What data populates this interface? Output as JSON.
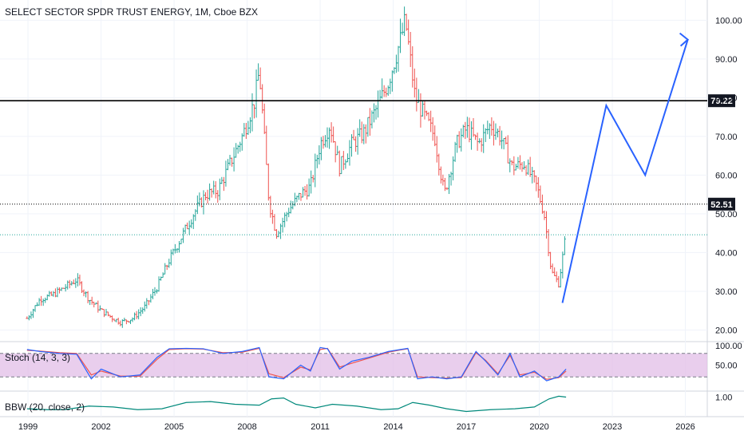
{
  "chart_data": {
    "type": "line",
    "title": "SELECT SECTOR SPDR TRUST ENERGY, 1M, Cboe BZX",
    "main_panel": {
      "y_ticks": [
        "20.00",
        "30.00",
        "40.00",
        "50.00",
        "60.00",
        "70.00",
        "80.00",
        "90.00",
        "100.00"
      ],
      "ylim": [
        17,
        104
      ],
      "y_scale": "linear",
      "price_series": {
        "style": "monthly bars",
        "up_color": "#26a69a",
        "down_color": "#ef5350",
        "x": [
          1998.96,
          1999.5,
          2000.0,
          2000.5,
          2001.0,
          2001.5,
          2002.0,
          2002.5,
          2002.8,
          2003.3,
          2003.8,
          2004.3,
          2004.8,
          2005.3,
          2005.8,
          2006.3,
          2006.8,
          2007.3,
          2007.8,
          2008.3,
          2008.5,
          2008.9,
          2009.2,
          2009.7,
          2010.2,
          2010.6,
          2011.0,
          2011.4,
          2011.8,
          2012.3,
          2012.8,
          2013.3,
          2013.8,
          2014.3,
          2014.5,
          2014.9,
          2015.3,
          2015.7,
          2016.1,
          2016.6,
          2017.0,
          2017.5,
          2018.0,
          2018.4,
          2018.9,
          2019.4,
          2019.9,
          2020.2,
          2020.5,
          2020.8,
          2021.1
        ],
        "close": [
          23,
          28,
          29,
          31,
          33,
          28,
          25,
          23,
          22,
          23,
          26,
          31,
          38,
          44,
          50,
          55,
          56,
          63,
          70,
          79,
          87,
          53,
          45,
          51,
          55,
          57,
          68,
          73,
          62,
          68,
          71,
          77,
          84,
          95,
          100,
          80,
          75,
          70,
          55,
          68,
          72,
          68,
          73,
          70,
          62,
          63,
          57,
          50,
          35,
          32,
          45
        ]
      },
      "forecast": {
        "color": "#2962ff",
        "x": [
          2020.95,
          2022.75,
          2024.35,
          2026.1
        ],
        "y": [
          27,
          78,
          60,
          95
        ]
      },
      "levels": [
        {
          "value": 79.22,
          "label": "79.22",
          "style": "solid",
          "color": "#000000"
        },
        {
          "value": 52.51,
          "label": "52.51",
          "style": "dotted",
          "color": "#000000"
        },
        {
          "value": 44.6,
          "label": "",
          "style": "dotted",
          "color": "#26a69a"
        }
      ]
    },
    "stoch_panel": {
      "label": "Stoch (14, 3, 3)",
      "y_ticks": [
        "100.00",
        "50.00"
      ],
      "ylim": [
        0,
        100
      ],
      "band": [
        20,
        80
      ],
      "band_color": "#e1bee7",
      "k_color": "#2962ff",
      "d_color": "#ef5350",
      "x": [
        1998.96,
        1999.5,
        2000.3,
        2001.0,
        2001.6,
        2002.0,
        2002.8,
        2003.6,
        2004.3,
        2004.8,
        2005.5,
        2006.2,
        2007.0,
        2007.8,
        2008.5,
        2008.9,
        2009.5,
        2010.2,
        2010.6,
        2011.0,
        2011.3,
        2011.8,
        2012.3,
        2013.0,
        2013.8,
        2014.3,
        2014.6,
        2015.0,
        2015.6,
        2016.2,
        2016.8,
        2017.4,
        2017.8,
        2018.3,
        2018.8,
        2019.2,
        2019.8,
        2020.3,
        2020.8,
        2021.1
      ],
      "k": [
        90,
        85,
        80,
        78,
        15,
        40,
        20,
        25,
        70,
        92,
        93,
        92,
        80,
        85,
        95,
        20,
        15,
        50,
        35,
        95,
        92,
        40,
        60,
        70,
        85,
        90,
        93,
        15,
        20,
        15,
        20,
        85,
        60,
        25,
        80,
        20,
        35,
        10,
        20,
        40
      ],
      "d": [
        88,
        86,
        82,
        80,
        25,
        35,
        22,
        22,
        65,
        90,
        92,
        91,
        82,
        83,
        93,
        28,
        18,
        45,
        38,
        90,
        93,
        45,
        55,
        68,
        83,
        89,
        92,
        20,
        18,
        17,
        18,
        82,
        62,
        28,
        75,
        25,
        32,
        14,
        18,
        35
      ]
    },
    "bbw_panel": {
      "label": "BBW (20, close, 2)",
      "y_ticks": [
        "1.00"
      ],
      "ylim": [
        0,
        1.2
      ],
      "line_color": "#00897b",
      "x": [
        1998.96,
        1999.8,
        2000.5,
        2001.5,
        2002.5,
        2003.5,
        2004.5,
        2005.5,
        2006.5,
        2007.5,
        2008.5,
        2009.0,
        2009.5,
        2010.0,
        2010.8,
        2011.5,
        2012.5,
        2013.5,
        2014.2,
        2014.8,
        2015.5,
        2016.2,
        2017.0,
        2018.0,
        2019.0,
        2019.8,
        2020.4,
        2020.8,
        2021.1
      ],
      "y": [
        0.35,
        0.3,
        0.3,
        0.5,
        0.45,
        0.3,
        0.35,
        0.7,
        0.75,
        0.6,
        0.55,
        0.9,
        0.95,
        0.6,
        0.4,
        0.6,
        0.5,
        0.3,
        0.35,
        0.7,
        0.55,
        0.35,
        0.2,
        0.3,
        0.35,
        0.45,
        0.9,
        1.05,
        1.0
      ]
    },
    "x_ticks": [
      "1999",
      "2002",
      "2005",
      "2008",
      "2011",
      "2014",
      "2017",
      "2020",
      "2023",
      "2026"
    ],
    "x_tick_values": [
      1999,
      2002,
      2005,
      2008,
      2011,
      2014,
      2017,
      2020,
      2023,
      2026
    ],
    "xlim": [
      1997.85,
      2026.9
    ]
  }
}
